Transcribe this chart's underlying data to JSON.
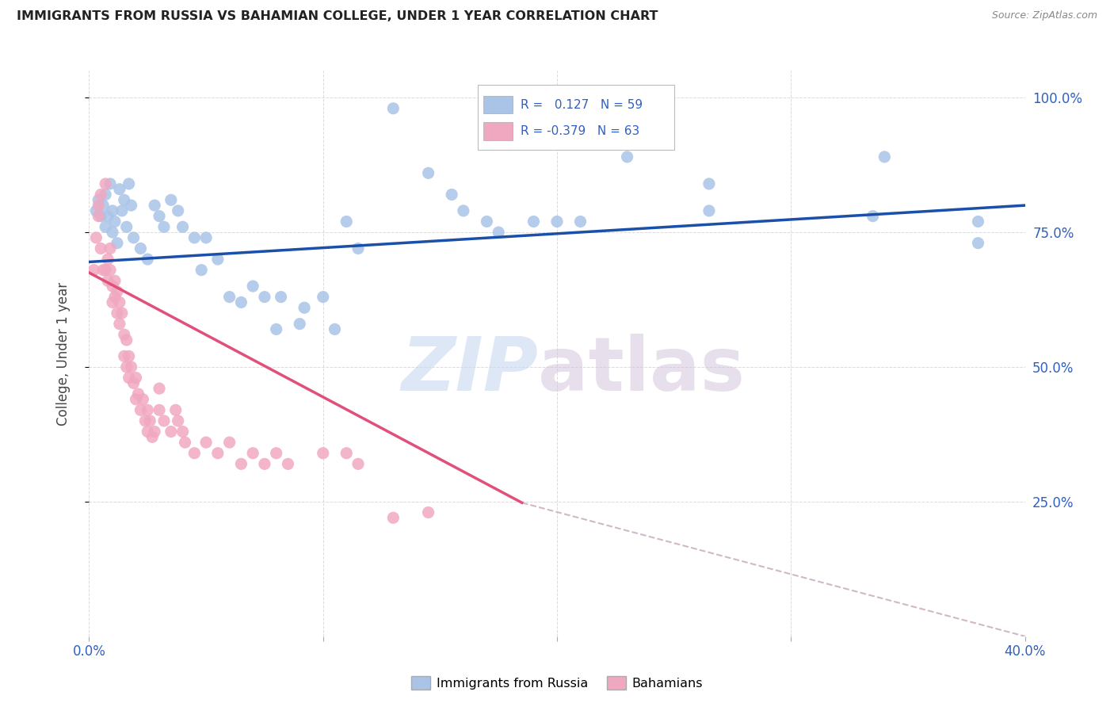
{
  "title": "IMMIGRANTS FROM RUSSIA VS BAHAMIAN COLLEGE, UNDER 1 YEAR CORRELATION CHART",
  "source": "Source: ZipAtlas.com",
  "ylabel": "College, Under 1 year",
  "xlim": [
    0.0,
    0.4
  ],
  "ylim": [
    0.0,
    1.05
  ],
  "watermark_zip": "ZIP",
  "watermark_atlas": "atlas",
  "blue_color": "#aac4e8",
  "pink_color": "#f0a8c0",
  "blue_line_color": "#1a4faa",
  "pink_line_color": "#e0507a",
  "dashed_line_color": "#d0b8c8",
  "blue_scatter": [
    [
      0.003,
      0.79
    ],
    [
      0.004,
      0.81
    ],
    [
      0.005,
      0.78
    ],
    [
      0.006,
      0.8
    ],
    [
      0.007,
      0.82
    ],
    [
      0.007,
      0.76
    ],
    [
      0.008,
      0.78
    ],
    [
      0.009,
      0.84
    ],
    [
      0.01,
      0.79
    ],
    [
      0.01,
      0.75
    ],
    [
      0.011,
      0.77
    ],
    [
      0.012,
      0.73
    ],
    [
      0.013,
      0.83
    ],
    [
      0.014,
      0.79
    ],
    [
      0.015,
      0.81
    ],
    [
      0.016,
      0.76
    ],
    [
      0.017,
      0.84
    ],
    [
      0.018,
      0.8
    ],
    [
      0.019,
      0.74
    ],
    [
      0.022,
      0.72
    ],
    [
      0.025,
      0.7
    ],
    [
      0.028,
      0.8
    ],
    [
      0.03,
      0.78
    ],
    [
      0.032,
      0.76
    ],
    [
      0.035,
      0.81
    ],
    [
      0.038,
      0.79
    ],
    [
      0.04,
      0.76
    ],
    [
      0.045,
      0.74
    ],
    [
      0.048,
      0.68
    ],
    [
      0.05,
      0.74
    ],
    [
      0.055,
      0.7
    ],
    [
      0.06,
      0.63
    ],
    [
      0.065,
      0.62
    ],
    [
      0.07,
      0.65
    ],
    [
      0.075,
      0.63
    ],
    [
      0.08,
      0.57
    ],
    [
      0.082,
      0.63
    ],
    [
      0.09,
      0.58
    ],
    [
      0.092,
      0.61
    ],
    [
      0.1,
      0.63
    ],
    [
      0.105,
      0.57
    ],
    [
      0.11,
      0.77
    ],
    [
      0.115,
      0.72
    ],
    [
      0.13,
      0.98
    ],
    [
      0.145,
      0.86
    ],
    [
      0.155,
      0.82
    ],
    [
      0.16,
      0.79
    ],
    [
      0.17,
      0.77
    ],
    [
      0.175,
      0.75
    ],
    [
      0.19,
      0.77
    ],
    [
      0.2,
      0.77
    ],
    [
      0.23,
      0.89
    ],
    [
      0.265,
      0.84
    ],
    [
      0.335,
      0.78
    ],
    [
      0.265,
      0.79
    ],
    [
      0.21,
      0.77
    ],
    [
      0.38,
      0.77
    ],
    [
      0.38,
      0.73
    ],
    [
      0.34,
      0.89
    ]
  ],
  "pink_scatter": [
    [
      0.002,
      0.68
    ],
    [
      0.003,
      0.74
    ],
    [
      0.004,
      0.78
    ],
    [
      0.004,
      0.8
    ],
    [
      0.005,
      0.82
    ],
    [
      0.005,
      0.72
    ],
    [
      0.006,
      0.68
    ],
    [
      0.007,
      0.84
    ],
    [
      0.007,
      0.68
    ],
    [
      0.008,
      0.7
    ],
    [
      0.008,
      0.66
    ],
    [
      0.009,
      0.72
    ],
    [
      0.009,
      0.68
    ],
    [
      0.01,
      0.65
    ],
    [
      0.01,
      0.62
    ],
    [
      0.011,
      0.66
    ],
    [
      0.011,
      0.63
    ],
    [
      0.012,
      0.64
    ],
    [
      0.012,
      0.6
    ],
    [
      0.013,
      0.62
    ],
    [
      0.013,
      0.58
    ],
    [
      0.014,
      0.6
    ],
    [
      0.015,
      0.56
    ],
    [
      0.015,
      0.52
    ],
    [
      0.016,
      0.55
    ],
    [
      0.016,
      0.5
    ],
    [
      0.017,
      0.52
    ],
    [
      0.017,
      0.48
    ],
    [
      0.018,
      0.5
    ],
    [
      0.019,
      0.47
    ],
    [
      0.02,
      0.44
    ],
    [
      0.02,
      0.48
    ],
    [
      0.021,
      0.45
    ],
    [
      0.022,
      0.42
    ],
    [
      0.023,
      0.44
    ],
    [
      0.024,
      0.4
    ],
    [
      0.025,
      0.38
    ],
    [
      0.025,
      0.42
    ],
    [
      0.026,
      0.4
    ],
    [
      0.027,
      0.37
    ],
    [
      0.028,
      0.38
    ],
    [
      0.03,
      0.42
    ],
    [
      0.03,
      0.46
    ],
    [
      0.032,
      0.4
    ],
    [
      0.035,
      0.38
    ],
    [
      0.037,
      0.42
    ],
    [
      0.038,
      0.4
    ],
    [
      0.04,
      0.38
    ],
    [
      0.041,
      0.36
    ],
    [
      0.045,
      0.34
    ],
    [
      0.05,
      0.36
    ],
    [
      0.055,
      0.34
    ],
    [
      0.06,
      0.36
    ],
    [
      0.065,
      0.32
    ],
    [
      0.07,
      0.34
    ],
    [
      0.075,
      0.32
    ],
    [
      0.08,
      0.34
    ],
    [
      0.085,
      0.32
    ],
    [
      0.1,
      0.34
    ],
    [
      0.11,
      0.34
    ],
    [
      0.115,
      0.32
    ],
    [
      0.13,
      0.22
    ],
    [
      0.145,
      0.23
    ]
  ],
  "blue_line_x": [
    0.0,
    0.4
  ],
  "blue_line_y": [
    0.695,
    0.8
  ],
  "pink_line_x": [
    0.0,
    0.185
  ],
  "pink_line_y": [
    0.675,
    0.248
  ],
  "dashed_line_x": [
    0.185,
    0.4
  ],
  "dashed_line_y": [
    0.248,
    0.0
  ]
}
